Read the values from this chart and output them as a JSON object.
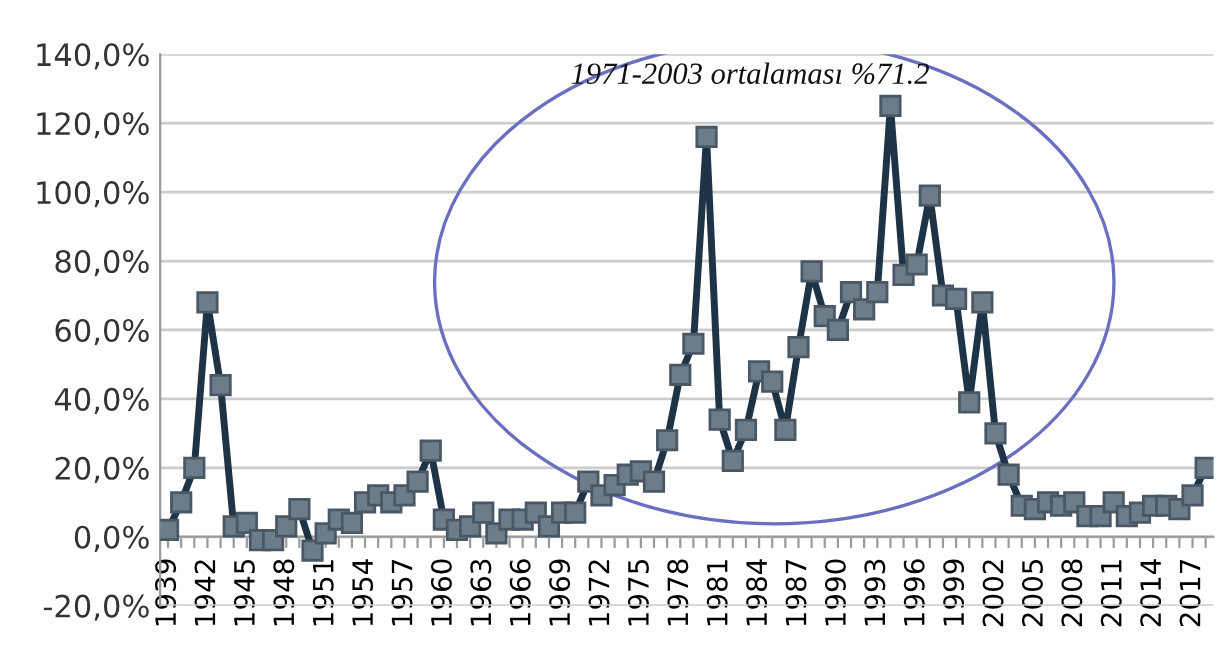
{
  "chart_data": {
    "type": "line",
    "categories": [
      "1939",
      null,
      null,
      "1942",
      null,
      null,
      "1945",
      null,
      null,
      "1948",
      null,
      null,
      "1951",
      null,
      null,
      "1954",
      null,
      null,
      "1957",
      null,
      null,
      "1960",
      null,
      null,
      "1963",
      null,
      null,
      "1966",
      null,
      null,
      "1969",
      null,
      null,
      "1972",
      null,
      null,
      "1975",
      null,
      null,
      "1978",
      null,
      null,
      "1981",
      null,
      null,
      "1984",
      null,
      null,
      "1987",
      null,
      null,
      "1990",
      null,
      null,
      "1993",
      null,
      null,
      "1996",
      null,
      null,
      "1999",
      null,
      null,
      "2002",
      null,
      null,
      "2005",
      null,
      null,
      "2008",
      null,
      null,
      "2011",
      null,
      null,
      "2014",
      null,
      null,
      "2017",
      null
    ],
    "series": [
      {
        "color": "#1e3346",
        "values": [
          2,
          10,
          20,
          68,
          44,
          3,
          4,
          -1,
          -1,
          3,
          8,
          -4,
          1,
          5,
          4,
          10,
          12,
          10,
          12,
          16,
          25,
          5,
          2,
          3,
          7,
          1,
          5,
          5,
          7,
          3,
          7,
          7,
          16,
          12,
          15,
          18,
          19,
          16,
          28,
          47,
          56,
          116,
          34,
          22,
          31,
          48,
          45,
          31,
          55,
          77,
          64,
          60,
          71,
          66,
          71,
          125,
          76,
          79,
          99,
          70,
          69,
          39,
          68,
          30,
          18,
          9,
          8,
          10,
          9,
          10,
          6,
          6,
          10,
          6,
          7,
          9,
          9,
          8,
          12,
          20
        ]
      }
    ],
    "ylim": [
      -20,
      140
    ],
    "yticks": [
      {
        "value": -20,
        "label": "-20,0%"
      },
      {
        "value": 0,
        "label": "0,0%"
      },
      {
        "value": 20,
        "label": "20,0%"
      },
      {
        "value": 40,
        "label": "40,0%"
      },
      {
        "value": 60,
        "label": "60,0%"
      },
      {
        "value": 80,
        "label": "80,0%"
      },
      {
        "value": 100,
        "label": "100,0%"
      },
      {
        "value": 120,
        "label": "120,0%"
      },
      {
        "value": 140,
        "label": "140,0%"
      }
    ],
    "grid": "y",
    "marker": "square",
    "line_style": "solid",
    "annotations": [
      "1971-2003 ortalaması %71.2"
    ]
  }
}
